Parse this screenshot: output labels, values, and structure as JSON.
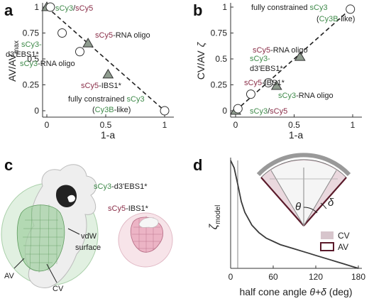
{
  "colors": {
    "green": "#3f8a4a",
    "red": "#8a2e48",
    "marker_gray": "#8f9c8f",
    "cv_fill": "#d7c5cc",
    "av_edge": "#5a1a2a"
  },
  "panels": {
    "a": "a",
    "b": "b",
    "c": "c",
    "d": "d"
  },
  "chart_data": [
    {
      "panel": "a",
      "type": "scatter",
      "xlabel": "1-a",
      "ylabel_main": "AV/AV",
      "ylabel_sub": "max",
      "xlim": [
        0,
        1
      ],
      "ylim": [
        0,
        1
      ],
      "xticks": [
        "0",
        "0.5",
        "1"
      ],
      "yticks": [
        "0",
        "0.25",
        "0.5",
        "0.75",
        "1"
      ],
      "trend_line": {
        "x": [
          0,
          1
        ],
        "y": [
          1,
          0
        ],
        "style": "dashed"
      },
      "points": [
        {
          "x": 0.0,
          "y": 1.0,
          "marker": "triangle"
        },
        {
          "x": 0.03,
          "y": 1.0,
          "marker": "circle"
        },
        {
          "x": 0.35,
          "y": 0.65,
          "marker": "triangle"
        },
        {
          "x": 0.13,
          "y": 0.75,
          "marker": "circle"
        },
        {
          "x": 0.28,
          "y": 0.57,
          "marker": "circle"
        },
        {
          "x": 0.52,
          "y": 0.35,
          "marker": "triangle"
        },
        {
          "x": 1.0,
          "y": 0.0,
          "marker": "circle"
        }
      ],
      "annotations": [
        {
          "parts": [
            {
              "t": "sCy3",
              "c": "green"
            },
            {
              "t": "/",
              "c": "dark"
            },
            {
              "t": "sCy5",
              "c": "red"
            }
          ]
        },
        {
          "parts": [
            {
              "t": "sCy5",
              "c": "red"
            },
            {
              "t": "-RNA oligo",
              "c": "dark"
            }
          ]
        },
        {
          "parts": [
            {
              "t": "sCy3-",
              "c": "green"
            }
          ]
        },
        {
          "parts": [
            {
              "t": "d3'EBS1*",
              "c": "dark"
            }
          ]
        },
        {
          "parts": [
            {
              "t": "sCy3",
              "c": "green"
            },
            {
              "t": "-RNA oligo",
              "c": "dark"
            }
          ]
        },
        {
          "parts": [
            {
              "t": "sCy5",
              "c": "red"
            },
            {
              "t": "-IBS1*",
              "c": "dark"
            }
          ]
        },
        {
          "parts": [
            {
              "t": "fully constrained ",
              "c": "dark"
            },
            {
              "t": "sCy3",
              "c": "green"
            }
          ]
        },
        {
          "parts": [
            {
              "t": "(",
              "c": "dark"
            },
            {
              "t": "Cy3B",
              "c": "green"
            },
            {
              "t": "-like)",
              "c": "dark"
            }
          ]
        }
      ]
    },
    {
      "panel": "b",
      "type": "scatter",
      "xlabel": "1-a",
      "ylabel_main": "CV/AV",
      "ylabel_zeta": "ζ",
      "xlim": [
        0,
        1
      ],
      "ylim": [
        0,
        1
      ],
      "xticks": [
        "0",
        "0.5",
        "1"
      ],
      "yticks": [
        "0",
        "0.25",
        "0.5",
        "0.75",
        "1"
      ],
      "trend_line": {
        "x": [
          0,
          1
        ],
        "y": [
          0,
          1
        ],
        "style": "dashed"
      },
      "points": [
        {
          "x": 0.0,
          "y": 0.0,
          "marker": "triangle"
        },
        {
          "x": 0.02,
          "y": 0.02,
          "marker": "circle"
        },
        {
          "x": 0.13,
          "y": 0.16,
          "marker": "circle"
        },
        {
          "x": 0.28,
          "y": 0.27,
          "marker": "circle"
        },
        {
          "x": 0.35,
          "y": 0.24,
          "marker": "triangle"
        },
        {
          "x": 0.55,
          "y": 0.52,
          "marker": "triangle"
        },
        {
          "x": 0.98,
          "y": 0.98,
          "marker": "circle"
        }
      ],
      "annotations": [
        {
          "parts": [
            {
              "t": "fully constrained ",
              "c": "dark"
            },
            {
              "t": "sCy3",
              "c": "green"
            }
          ]
        },
        {
          "parts": [
            {
              "t": "(",
              "c": "dark"
            },
            {
              "t": "Cy3B",
              "c": "green"
            },
            {
              "t": "-like)",
              "c": "dark"
            }
          ]
        },
        {
          "parts": [
            {
              "t": "sCy5",
              "c": "red"
            },
            {
              "t": "-RNA oligo",
              "c": "dark"
            }
          ]
        },
        {
          "parts": [
            {
              "t": "sCy3-",
              "c": "green"
            }
          ]
        },
        {
          "parts": [
            {
              "t": "d3'EBS1*",
              "c": "dark"
            }
          ]
        },
        {
          "parts": [
            {
              "t": "sCy5",
              "c": "red"
            },
            {
              "t": "-IBS1*",
              "c": "dark"
            }
          ]
        },
        {
          "parts": [
            {
              "t": "sCy3",
              "c": "green"
            },
            {
              "t": "-RNA oligo",
              "c": "dark"
            }
          ]
        },
        {
          "parts": [
            {
              "t": "sCy3",
              "c": "green"
            },
            {
              "t": "/",
              "c": "dark"
            },
            {
              "t": "sCy5",
              "c": "red"
            }
          ]
        }
      ]
    },
    {
      "panel": "d",
      "type": "line",
      "xlabel_main": "half cone angle ",
      "xlabel_math": "θ+δ",
      "xlabel_unit": " (deg)",
      "ylabel_main": "ζ",
      "ylabel_sub": "model",
      "xlim": [
        0,
        180
      ],
      "ylim": [
        0,
        1
      ],
      "xticks": [
        "0",
        "60",
        "120",
        "180"
      ],
      "vline_x": 10,
      "curve": {
        "x": [
          0,
          5,
          10,
          15,
          20,
          30,
          40,
          50,
          60,
          70,
          80,
          90,
          100,
          110,
          120,
          130,
          140,
          150,
          160,
          170,
          180
        ],
        "y": [
          1.0,
          0.93,
          0.78,
          0.62,
          0.52,
          0.4,
          0.33,
          0.28,
          0.25,
          0.22,
          0.2,
          0.18,
          0.16,
          0.14,
          0.12,
          0.1,
          0.08,
          0.06,
          0.04,
          0.02,
          0.0
        ]
      },
      "inset_labels": {
        "theta": "θ",
        "delta": "δ"
      },
      "legend": [
        {
          "label": "CV",
          "kind": "cv"
        },
        {
          "label": "AV",
          "kind": "av"
        }
      ]
    }
  ],
  "panel_c": {
    "label_green_part": "sCy3",
    "label_green_rest": "-d3'EBS1*",
    "label_red_part": "sCy5",
    "label_red_rest": "-IBS1*",
    "vdw_line1": "vdW",
    "vdw_line2": "surface",
    "av_label": "AV",
    "cv_label": "CV"
  }
}
